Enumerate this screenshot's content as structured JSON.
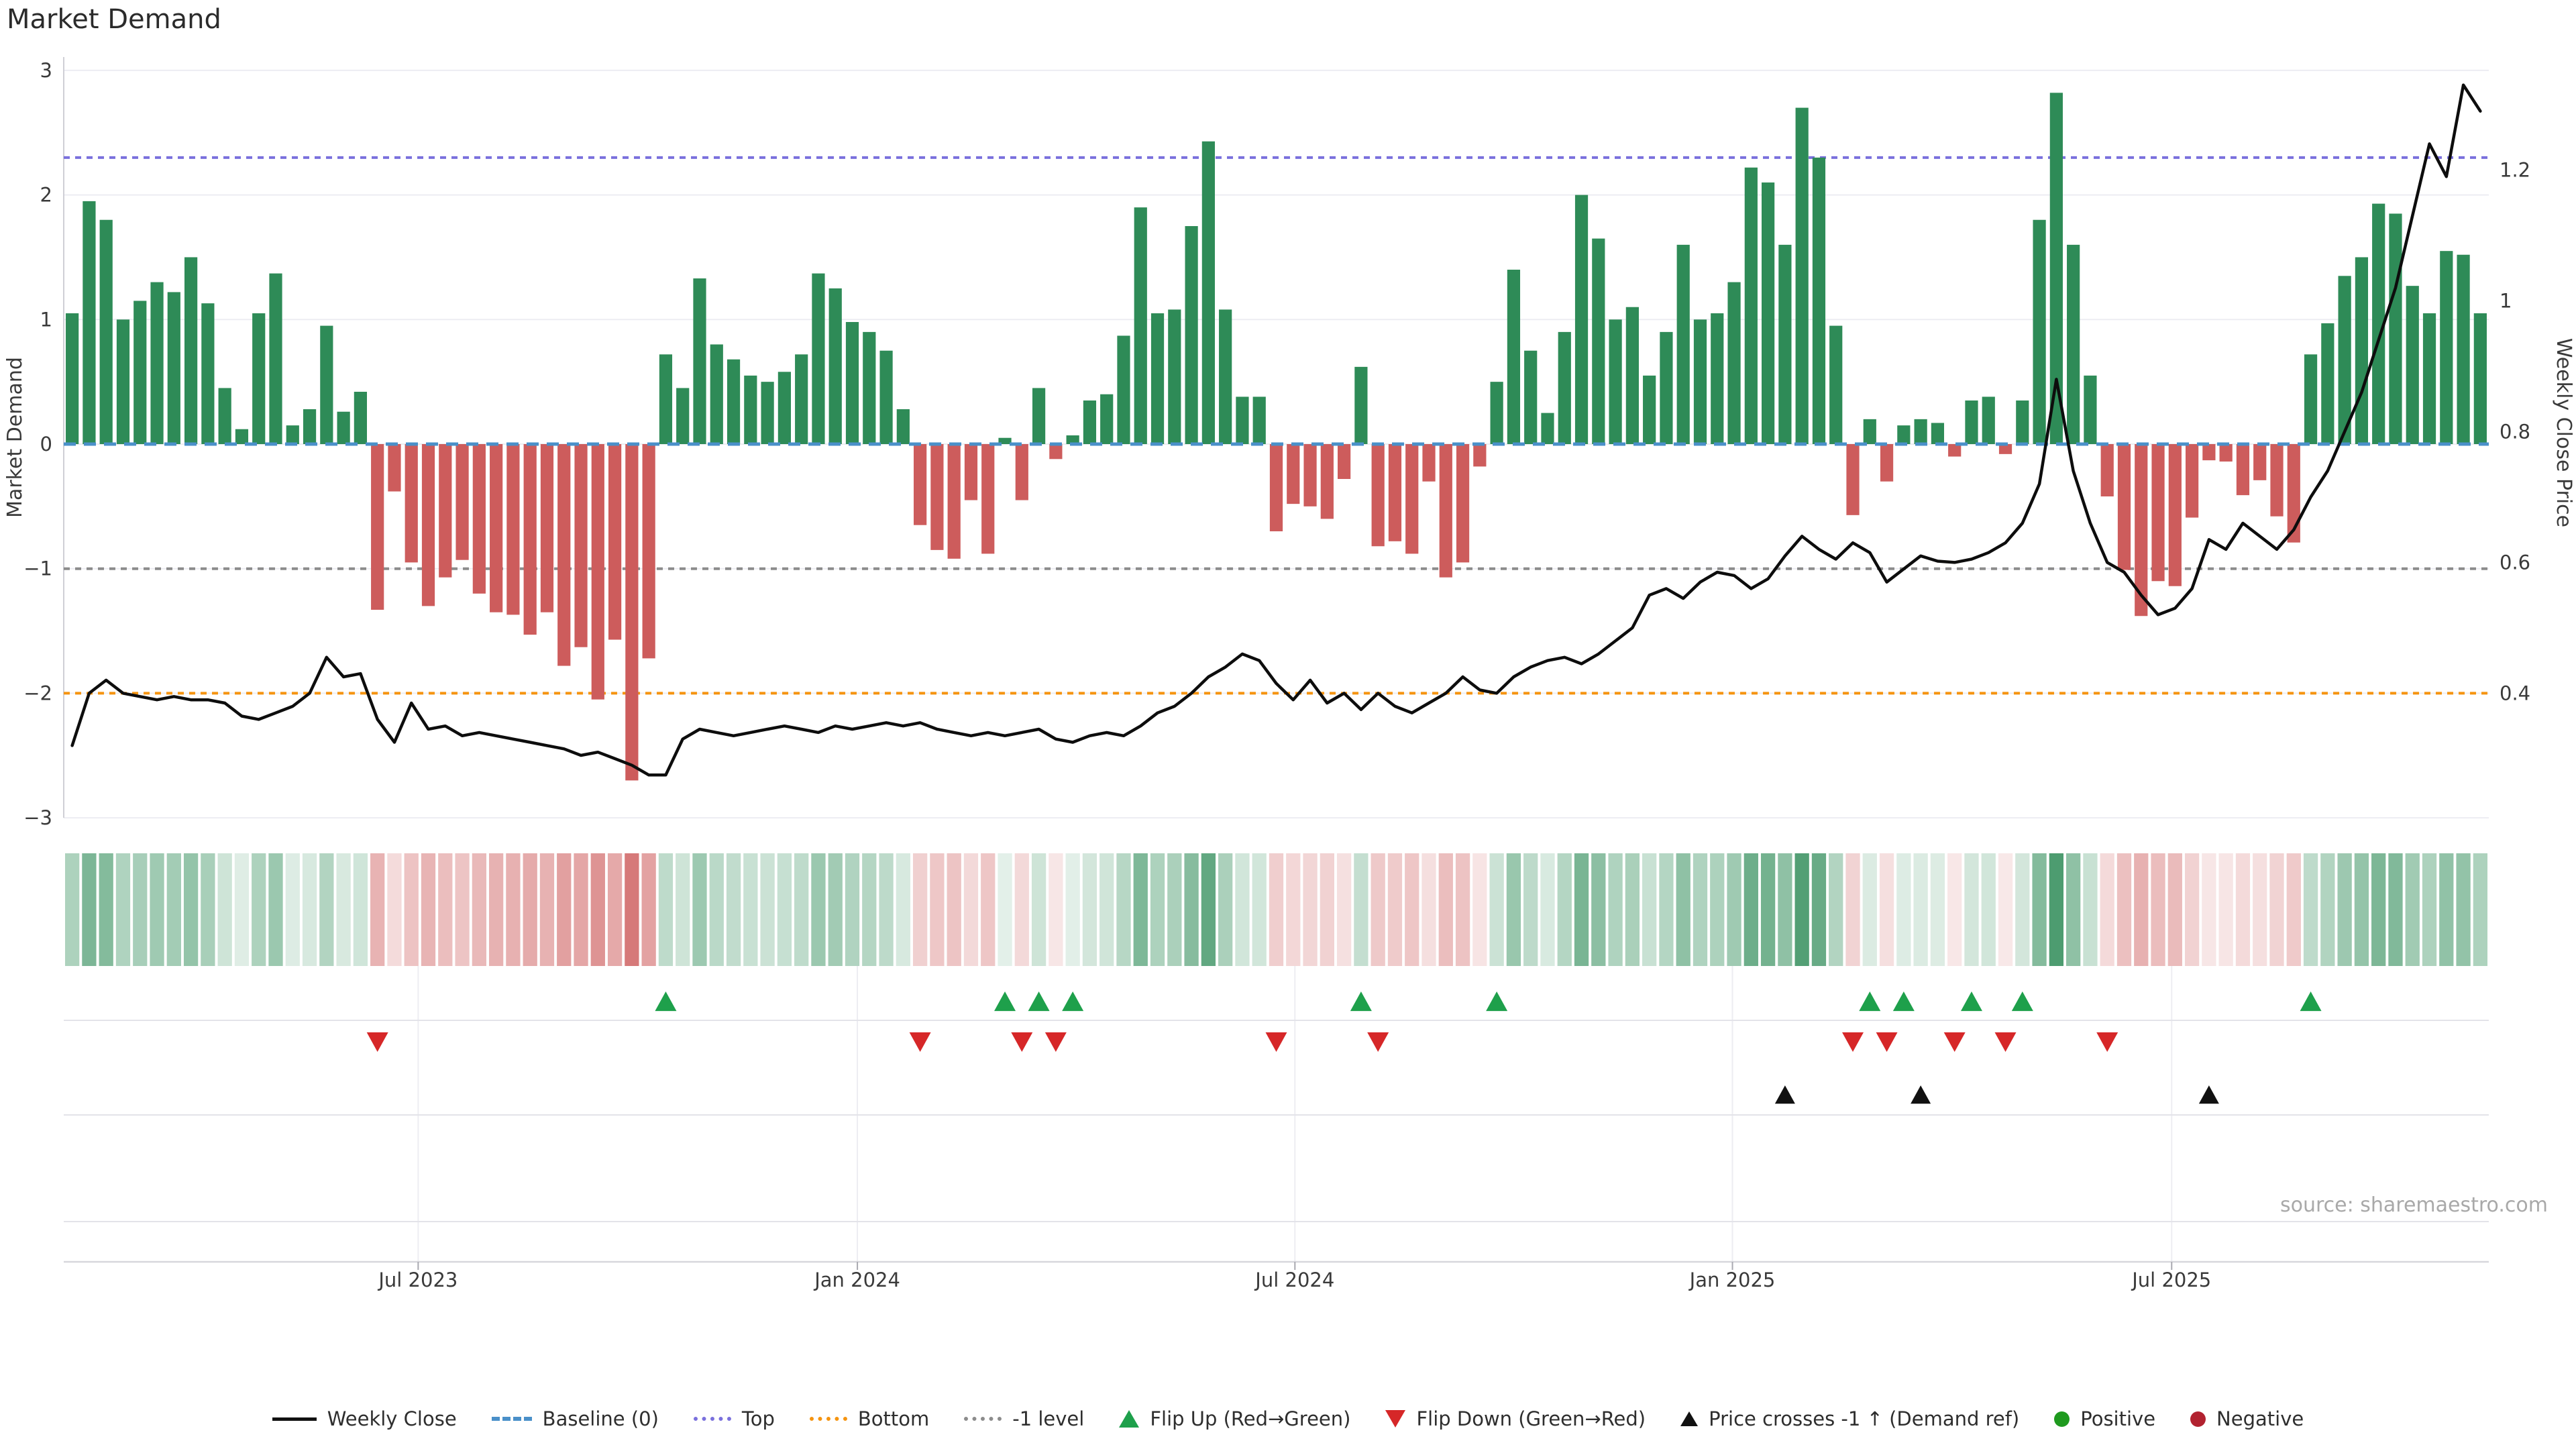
{
  "title": "Market Demand",
  "source_text": "source: sharemaestro.com",
  "axes": {
    "left_label": "Market Demand",
    "right_label": "Weekly Close Price",
    "left_ticks": [
      {
        "label": "3",
        "value": 3
      },
      {
        "label": "2",
        "value": 2
      },
      {
        "label": "1",
        "value": 1
      },
      {
        "label": "0",
        "value": 0
      },
      {
        "label": "−1",
        "value": -1
      },
      {
        "label": "−2",
        "value": -2
      },
      {
        "label": "−3",
        "value": -3
      }
    ],
    "right_ticks": [
      {
        "label": "1.2",
        "value": 1.2
      },
      {
        "label": "1",
        "value": 1.0
      },
      {
        "label": "0.8",
        "value": 0.8
      },
      {
        "label": "0.6",
        "value": 0.6
      },
      {
        "label": "0.4",
        "value": 0.4
      }
    ],
    "x_ticks": [
      {
        "label": "Jul 2023",
        "week": 20.4
      },
      {
        "label": "Jan 2024",
        "week": 46.3
      },
      {
        "label": "Jul 2024",
        "week": 72.1
      },
      {
        "label": "Jan 2025",
        "week": 97.9
      },
      {
        "label": "Jul 2025",
        "week": 123.8
      }
    ],
    "demand_ylim": [
      -3,
      3
    ],
    "price_ylim": [
      0.21,
      1.37
    ]
  },
  "chart_data": {
    "type": "bar+line+heatmap",
    "x_unit": "weeks",
    "n_weeks": 143,
    "reference_lines": {
      "baseline": 0,
      "top": 2.3,
      "bottom": -2,
      "minus1_level": -1
    },
    "demand_bars": [
      1.05,
      1.95,
      1.8,
      1.0,
      1.15,
      1.3,
      1.22,
      1.5,
      1.13,
      0.45,
      0.12,
      1.05,
      1.37,
      0.15,
      0.28,
      0.95,
      0.26,
      0.42,
      -1.33,
      -0.38,
      -0.95,
      -1.3,
      -1.07,
      -0.93,
      -1.2,
      -1.35,
      -1.37,
      -1.53,
      -1.35,
      -1.78,
      -1.63,
      -2.05,
      -1.57,
      -2.7,
      -1.72,
      0.72,
      0.45,
      1.33,
      0.8,
      0.68,
      0.55,
      0.5,
      0.58,
      0.72,
      1.37,
      1.25,
      0.98,
      0.9,
      0.75,
      0.28,
      -0.65,
      -0.85,
      -0.92,
      -0.45,
      -0.88,
      0.05,
      -0.45,
      0.45,
      -0.12,
      0.07,
      0.35,
      0.4,
      0.87,
      1.9,
      1.05,
      1.08,
      1.75,
      2.43,
      1.08,
      0.38,
      0.38,
      -0.7,
      -0.48,
      -0.5,
      -0.6,
      -0.28,
      0.62,
      -0.82,
      -0.78,
      -0.88,
      -0.3,
      -1.07,
      -0.95,
      -0.18,
      0.5,
      1.4,
      0.75,
      0.25,
      0.9,
      2.0,
      1.65,
      1.0,
      1.1,
      0.55,
      0.9,
      1.6,
      1.0,
      1.05,
      1.3,
      2.22,
      2.1,
      1.6,
      2.7,
      2.3,
      0.95,
      -0.57,
      0.2,
      -0.3,
      0.15,
      0.2,
      0.17,
      -0.1,
      0.35,
      0.38,
      -0.08,
      0.35,
      1.8,
      2.82,
      1.6,
      0.55,
      -0.42,
      -1.01,
      -1.38,
      -1.1,
      -1.14,
      -0.59,
      -0.13,
      -0.14,
      -0.41,
      -0.29,
      -0.58,
      -0.79,
      0.72,
      0.97,
      1.35,
      1.5,
      1.93,
      1.85,
      1.27,
      1.05,
      1.55,
      1.52,
      1.05
    ],
    "weekly_close": [
      0.32,
      0.4,
      0.42,
      0.4,
      0.395,
      0.39,
      0.395,
      0.39,
      0.39,
      0.385,
      0.365,
      0.36,
      0.37,
      0.38,
      0.4,
      0.455,
      0.425,
      0.43,
      0.36,
      0.325,
      0.385,
      0.345,
      0.35,
      0.335,
      0.34,
      0.335,
      0.33,
      0.325,
      0.32,
      0.315,
      0.305,
      0.31,
      0.3,
      0.29,
      0.275,
      0.275,
      0.33,
      0.345,
      0.34,
      0.335,
      0.34,
      0.345,
      0.35,
      0.345,
      0.34,
      0.35,
      0.345,
      0.35,
      0.355,
      0.35,
      0.355,
      0.345,
      0.34,
      0.335,
      0.34,
      0.335,
      0.34,
      0.345,
      0.33,
      0.325,
      0.335,
      0.34,
      0.335,
      0.35,
      0.37,
      0.38,
      0.4,
      0.425,
      0.44,
      0.46,
      0.45,
      0.415,
      0.39,
      0.42,
      0.385,
      0.4,
      0.375,
      0.4,
      0.38,
      0.37,
      0.385,
      0.4,
      0.425,
      0.405,
      0.4,
      0.425,
      0.44,
      0.45,
      0.455,
      0.445,
      0.46,
      0.48,
      0.5,
      0.55,
      0.56,
      0.545,
      0.57,
      0.585,
      0.58,
      0.56,
      0.575,
      0.61,
      0.64,
      0.62,
      0.605,
      0.63,
      0.615,
      0.57,
      0.59,
      0.61,
      0.602,
      0.6,
      0.605,
      0.615,
      0.63,
      0.66,
      0.72,
      0.88,
      0.74,
      0.66,
      0.6,
      0.585,
      0.55,
      0.52,
      0.53,
      0.56,
      0.635,
      0.62,
      0.66,
      0.64,
      0.62,
      0.65,
      0.7,
      0.74,
      0.8,
      0.86,
      0.94,
      1.02,
      1.13,
      1.24,
      1.19,
      1.33,
      1.29
    ],
    "markers": {
      "flip_up_weeks": [
        35,
        55,
        57,
        59,
        76,
        84,
        106,
        108,
        112,
        115,
        132
      ],
      "flip_down_weeks": [
        18,
        50,
        56,
        58,
        71,
        77,
        105,
        107,
        111,
        114,
        120
      ],
      "price_cross_minus1_weeks": [
        101,
        109,
        126
      ]
    },
    "heatmap": "same values as demand_bars, green shades positive / red shades negative, intensity by magnitude"
  },
  "legend": {
    "items": [
      {
        "id": "weekly-close",
        "type": "line",
        "color": "#111111",
        "label": "Weekly Close"
      },
      {
        "id": "baseline",
        "type": "dashes",
        "color": "#4a90c9",
        "label": "Baseline (0)"
      },
      {
        "id": "top",
        "type": "dots",
        "color": "#7a70dd",
        "label": "Top"
      },
      {
        "id": "bottom",
        "type": "dots",
        "color": "#f59410",
        "label": "Bottom"
      },
      {
        "id": "minus1-level",
        "type": "dots",
        "color": "#8c8c8c",
        "label": "-1 level"
      },
      {
        "id": "flip-up",
        "type": "tri-up",
        "color": "#1ea04b",
        "label": "Flip Up (Red→Green)"
      },
      {
        "id": "flip-down",
        "type": "tri-down",
        "color": "#d62728",
        "label": "Flip Down (Green→Red)"
      },
      {
        "id": "price-cross",
        "type": "tri-up-small",
        "color": "#111111",
        "label": "Price crosses -1 ↑ (Demand ref)"
      },
      {
        "id": "positive",
        "type": "circle",
        "color": "#1f9a1f",
        "label": "Positive"
      },
      {
        "id": "negative",
        "type": "circle",
        "color": "#b22230",
        "label": "Negative"
      }
    ]
  },
  "colors": {
    "positive_bar": "#2e8b57",
    "negative_bar": "#cd5c5c",
    "price_line": "#0d0d0d",
    "baseline": "#4a90c9",
    "top_line": "#7a70dd",
    "bottom_line": "#f59410",
    "minus1_line": "#8c8c8c",
    "grid": "#ededf2",
    "separator": "#e3e3e9",
    "axis_line": "#d7d7dc",
    "spine": "#cfcfd6",
    "axis_text": "#3a3a3a",
    "source_text": "#a9a9a9",
    "flip_up_marker": "#1ea04b",
    "flip_down_marker": "#d62728",
    "price_cross_marker": "#111111",
    "background": "#ffffff"
  }
}
